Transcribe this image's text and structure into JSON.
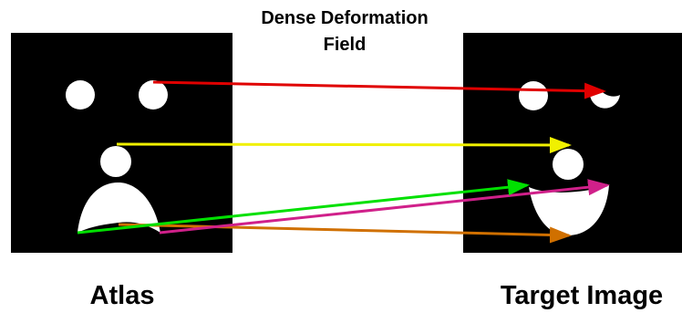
{
  "title": {
    "line1": "Dense Deformation",
    "line2": "Field"
  },
  "labels": {
    "source": "Atlas",
    "target": "Target Image"
  }
}
